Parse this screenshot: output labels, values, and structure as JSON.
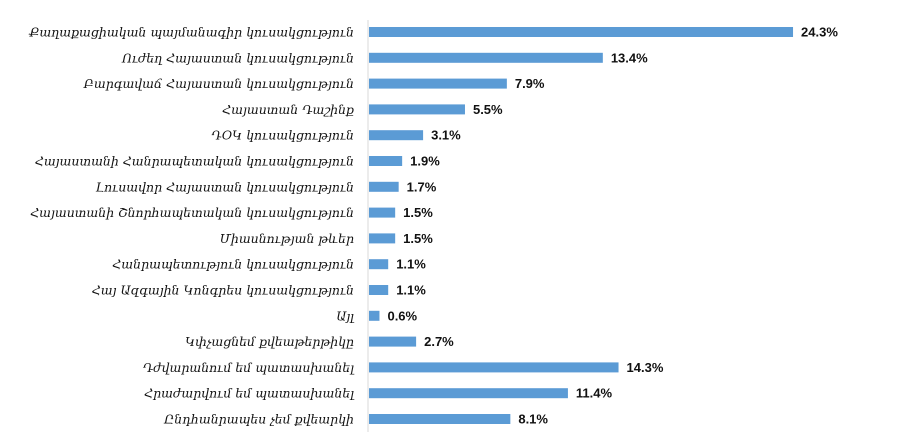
{
  "chart_data": {
    "type": "bar",
    "orientation": "horizontal",
    "categories": [
      "Քաղաքացիական պայմանագիր կուսակցություն",
      "Ուժեղ Հայաստան կուսակցություն",
      "Բարգավաճ Հայաստան կուսակցություն",
      "Հայաստան Դաշինք",
      "ԴՕԿ կուսակցություն",
      "Հայաստանի Հանրապետական կուսակցություն",
      "Լուսավոր Հայաստան կուսակցություն",
      "Հայաստանի Շնորհապետական կուսակցություն",
      "Միասնության թևեր",
      "Հանրապետություն կուսակցություն",
      "Հայ Ազգային Կոնգրես կուսակցություն",
      "Այլ",
      "Կփչացնեմ քվեաթերթիկը",
      "Դժվարանում եմ պատասխանել",
      "Հրաժարվում եմ պատասխանել",
      "Ընդհանրապես չեմ քվեարկի"
    ],
    "values": [
      24.3,
      13.4,
      7.9,
      5.5,
      3.1,
      1.9,
      1.7,
      1.5,
      1.5,
      1.1,
      1.1,
      0.6,
      2.7,
      14.3,
      11.4,
      8.1
    ],
    "value_labels": [
      "24.3%",
      "13.4%",
      "7.9%",
      "5.5%",
      "3.1%",
      "1.9%",
      "1.7%",
      "1.5%",
      "1.5%",
      "1.1%",
      "1.1%",
      "0.6%",
      "2.7%",
      "14.3%",
      "11.4%",
      "8.1%"
    ],
    "bar_color": "#5B9BD5",
    "axis_color": "#D9D9D9",
    "grid": false,
    "legend": "none"
  }
}
